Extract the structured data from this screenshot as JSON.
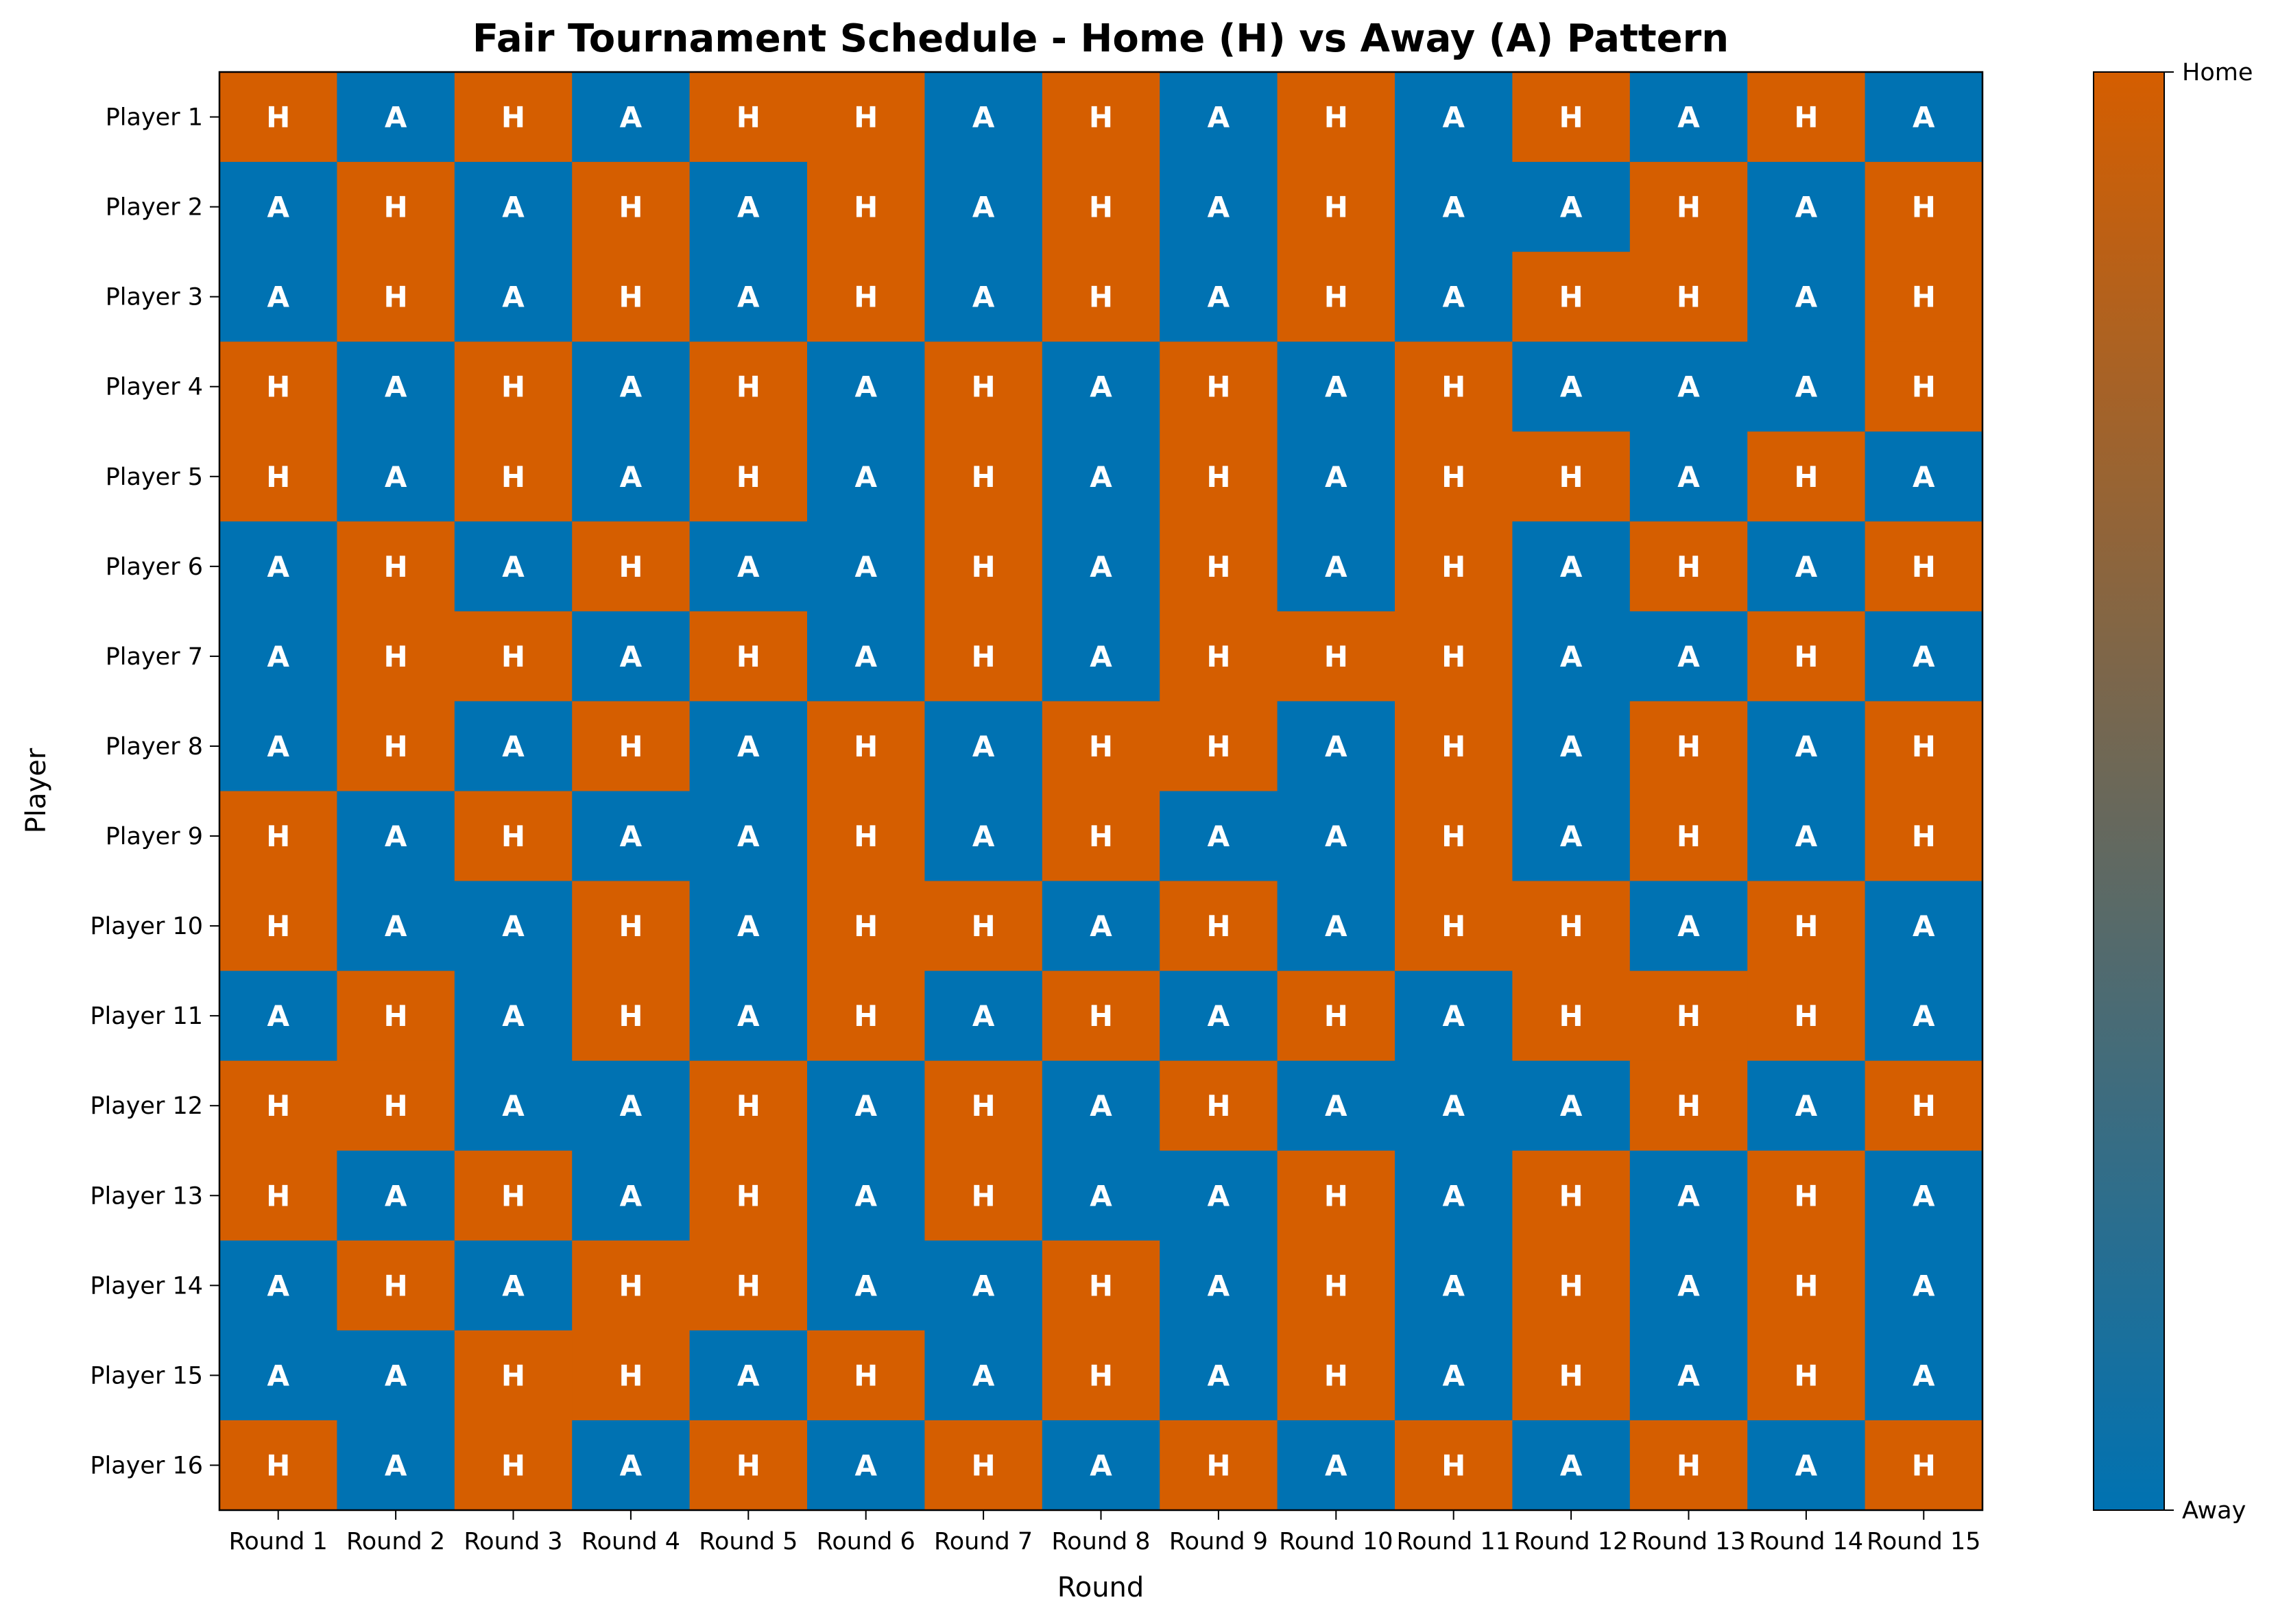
{
  "chart_data": {
    "type": "heatmap",
    "title": "Fair Tournament Schedule - Home (H) vs Away (A) Pattern",
    "xlabel": "Round",
    "ylabel": "Player",
    "x": [
      "Round 1",
      "Round 2",
      "Round 3",
      "Round 4",
      "Round 5",
      "Round 6",
      "Round 7",
      "Round 8",
      "Round 9",
      "Round 10",
      "Round 11",
      "Round 12",
      "Round 13",
      "Round 14",
      "Round 15"
    ],
    "y": [
      "Player 1",
      "Player 2",
      "Player 3",
      "Player 4",
      "Player 5",
      "Player 6",
      "Player 7",
      "Player 8",
      "Player 9",
      "Player 10",
      "Player 11",
      "Player 12",
      "Player 13",
      "Player 14",
      "Player 15",
      "Player 16"
    ],
    "values": [
      [
        "H",
        "A",
        "H",
        "A",
        "H",
        "H",
        "A",
        "H",
        "A",
        "H",
        "A",
        "H",
        "A",
        "H",
        "A"
      ],
      [
        "A",
        "H",
        "A",
        "H",
        "A",
        "H",
        "A",
        "H",
        "A",
        "H",
        "A",
        "A",
        "H",
        "A",
        "H"
      ],
      [
        "A",
        "H",
        "A",
        "H",
        "A",
        "H",
        "A",
        "H",
        "A",
        "H",
        "A",
        "H",
        "H",
        "A",
        "H"
      ],
      [
        "H",
        "A",
        "H",
        "A",
        "H",
        "A",
        "H",
        "A",
        "H",
        "A",
        "H",
        "A",
        "A",
        "A",
        "H"
      ],
      [
        "H",
        "A",
        "H",
        "A",
        "H",
        "A",
        "H",
        "A",
        "H",
        "A",
        "H",
        "H",
        "A",
        "H",
        "A"
      ],
      [
        "A",
        "H",
        "A",
        "H",
        "A",
        "A",
        "H",
        "A",
        "H",
        "A",
        "H",
        "A",
        "H",
        "A",
        "H"
      ],
      [
        "A",
        "H",
        "H",
        "A",
        "H",
        "A",
        "H",
        "A",
        "H",
        "H",
        "H",
        "A",
        "A",
        "H",
        "A"
      ],
      [
        "A",
        "H",
        "A",
        "H",
        "A",
        "H",
        "A",
        "H",
        "H",
        "A",
        "H",
        "A",
        "H",
        "A",
        "H"
      ],
      [
        "H",
        "A",
        "H",
        "A",
        "A",
        "H",
        "A",
        "H",
        "A",
        "A",
        "H",
        "A",
        "H",
        "A",
        "H"
      ],
      [
        "H",
        "A",
        "A",
        "H",
        "A",
        "H",
        "H",
        "A",
        "H",
        "A",
        "H",
        "H",
        "A",
        "H",
        "A"
      ],
      [
        "A",
        "H",
        "A",
        "H",
        "A",
        "H",
        "A",
        "H",
        "A",
        "H",
        "A",
        "H",
        "H",
        "H",
        "A"
      ],
      [
        "H",
        "H",
        "A",
        "A",
        "H",
        "A",
        "H",
        "A",
        "H",
        "A",
        "A",
        "A",
        "H",
        "A",
        "H"
      ],
      [
        "H",
        "A",
        "H",
        "A",
        "H",
        "A",
        "H",
        "A",
        "A",
        "H",
        "A",
        "H",
        "A",
        "H",
        "A"
      ],
      [
        "A",
        "H",
        "A",
        "H",
        "H",
        "A",
        "A",
        "H",
        "A",
        "H",
        "A",
        "H",
        "A",
        "H",
        "A"
      ],
      [
        "A",
        "A",
        "H",
        "H",
        "A",
        "H",
        "A",
        "H",
        "A",
        "H",
        "A",
        "H",
        "A",
        "H",
        "A"
      ],
      [
        "H",
        "A",
        "H",
        "A",
        "H",
        "A",
        "H",
        "A",
        "H",
        "A",
        "H",
        "A",
        "H",
        "A",
        "H"
      ]
    ],
    "colorbar": {
      "labels": [
        "Away",
        "Home"
      ]
    },
    "colors": {
      "home": "#d55e00",
      "away": "#0072b2",
      "cell_text": "#ffffff"
    },
    "grid": false
  }
}
